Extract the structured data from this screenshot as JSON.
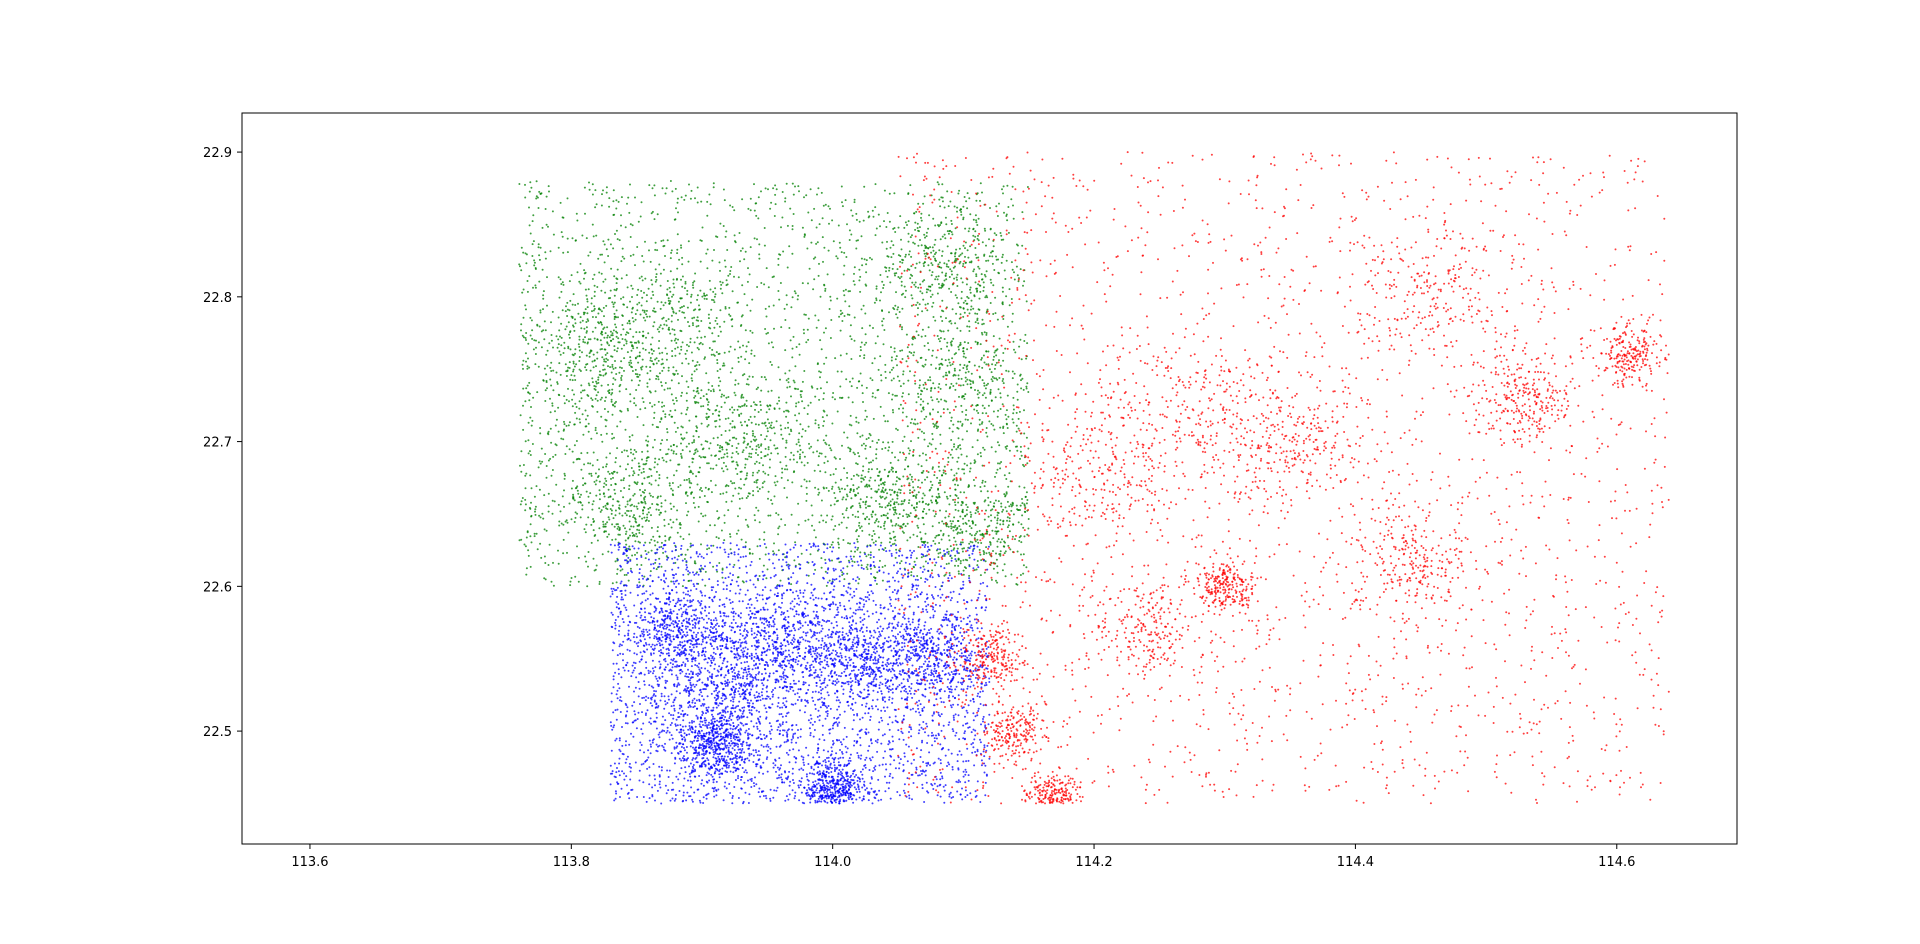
{
  "chart_data": {
    "type": "scatter",
    "title": "",
    "xlabel": "",
    "ylabel": "",
    "xlim": [
      113.548,
      114.692
    ],
    "ylim": [
      22.422,
      22.927
    ],
    "grid": false,
    "legend": "none",
    "x_ticks": [
      "113.6",
      "113.8",
      "114.0",
      "114.2",
      "114.4",
      "114.6"
    ],
    "x_tick_values": [
      113.6,
      113.8,
      114.0,
      114.2,
      114.4,
      114.6
    ],
    "y_ticks": [
      "22.5",
      "22.6",
      "22.7",
      "22.8",
      "22.9"
    ],
    "y_tick_values": [
      22.5,
      22.6,
      22.7,
      22.8,
      22.9
    ],
    "series": [
      {
        "color": "#008000",
        "points_approx_count": 5000,
        "extent_x": [
          113.76,
          114.15
        ],
        "extent_y": [
          22.6,
          22.88
        ],
        "dense_regions": [
          {
            "x": 113.81,
            "y": 22.76,
            "spread": 0.035
          },
          {
            "x": 113.84,
            "y": 22.66,
            "spread": 0.03
          },
          {
            "x": 113.87,
            "y": 22.78,
            "spread": 0.035
          },
          {
            "x": 113.93,
            "y": 22.7,
            "spread": 0.03
          },
          {
            "x": 114.04,
            "y": 22.66,
            "spread": 0.025
          },
          {
            "x": 114.09,
            "y": 22.82,
            "spread": 0.03
          },
          {
            "x": 114.11,
            "y": 22.64,
            "spread": 0.025
          },
          {
            "x": 114.1,
            "y": 22.74,
            "spread": 0.03
          }
        ]
      },
      {
        "color": "#0000ff",
        "points_approx_count": 6000,
        "extent_x": [
          113.83,
          114.12
        ],
        "extent_y": [
          22.45,
          22.63
        ],
        "dense_regions": [
          {
            "x": 113.88,
            "y": 22.57,
            "spread": 0.02
          },
          {
            "x": 113.92,
            "y": 22.53,
            "spread": 0.025
          },
          {
            "x": 113.96,
            "y": 22.56,
            "spread": 0.025
          },
          {
            "x": 114.02,
            "y": 22.55,
            "spread": 0.025
          },
          {
            "x": 114.08,
            "y": 22.55,
            "spread": 0.02
          },
          {
            "x": 114.0,
            "y": 22.46,
            "spread": 0.012
          },
          {
            "x": 113.91,
            "y": 22.49,
            "spread": 0.015
          }
        ]
      },
      {
        "color": "#ff0000",
        "points_approx_count": 5000,
        "extent_x": [
          114.05,
          114.64
        ],
        "extent_y": [
          22.45,
          22.9
        ],
        "dense_regions": [
          {
            "x": 114.12,
            "y": 22.55,
            "spread": 0.015
          },
          {
            "x": 114.14,
            "y": 22.5,
            "spread": 0.012
          },
          {
            "x": 114.17,
            "y": 22.455,
            "spread": 0.01
          },
          {
            "x": 114.21,
            "y": 22.68,
            "spread": 0.03
          },
          {
            "x": 114.28,
            "y": 22.72,
            "spread": 0.035
          },
          {
            "x": 114.35,
            "y": 22.7,
            "spread": 0.03
          },
          {
            "x": 114.44,
            "y": 22.62,
            "spread": 0.025
          },
          {
            "x": 114.46,
            "y": 22.8,
            "spread": 0.03
          },
          {
            "x": 114.53,
            "y": 22.73,
            "spread": 0.02
          },
          {
            "x": 114.61,
            "y": 22.76,
            "spread": 0.012
          },
          {
            "x": 114.24,
            "y": 22.57,
            "spread": 0.02
          },
          {
            "x": 114.3,
            "y": 22.6,
            "spread": 0.012
          }
        ]
      }
    ]
  }
}
